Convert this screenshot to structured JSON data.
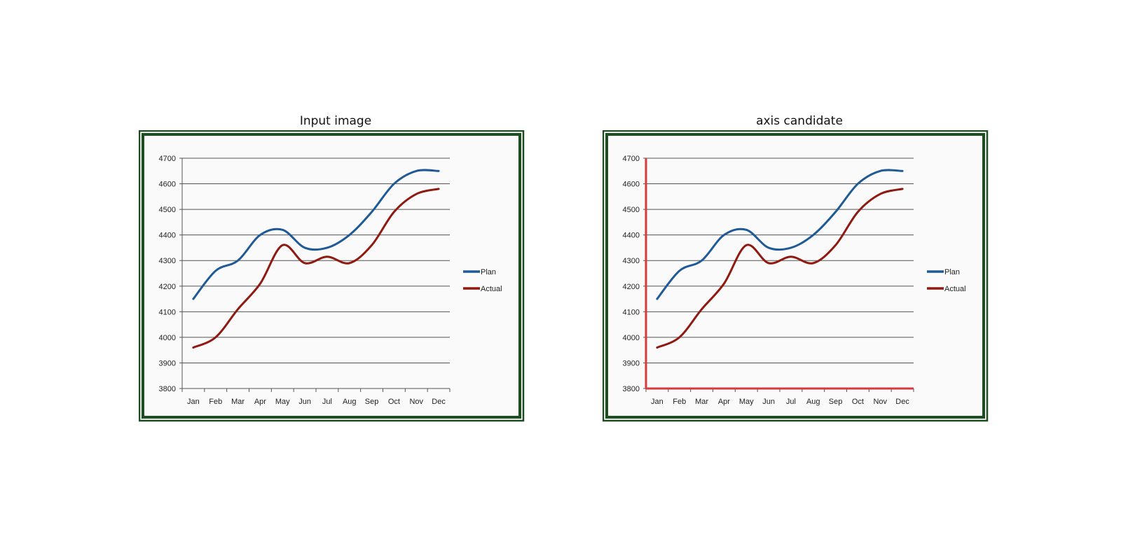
{
  "panels": [
    {
      "title": "Input image",
      "highlight_axes": false
    },
    {
      "title": "axis candidate",
      "highlight_axes": true,
      "highlight_color": "#d63a3a"
    }
  ],
  "colors": {
    "frame": "#1d4d20",
    "plan": "#1f5a96",
    "actual": "#8e1a12",
    "grid": "#555555",
    "plot_bg": "#fafafa"
  },
  "chart_data": {
    "type": "line",
    "categories": [
      "Jan",
      "Feb",
      "Mar",
      "Apr",
      "May",
      "Jun",
      "Jul",
      "Aug",
      "Sep",
      "Oct",
      "Nov",
      "Dec"
    ],
    "series": [
      {
        "name": "Plan",
        "values": [
          4150,
          4260,
          4300,
          4400,
          4420,
          4350,
          4350,
          4400,
          4490,
          4600,
          4650,
          4650
        ]
      },
      {
        "name": "Actual",
        "values": [
          3960,
          4000,
          4110,
          4210,
          4360,
          4290,
          4315,
          4290,
          4360,
          4490,
          4560,
          4580
        ]
      }
    ],
    "ylim": [
      3800,
      4700
    ],
    "yticks": [
      3800,
      3900,
      4000,
      4100,
      4200,
      4300,
      4400,
      4500,
      4600,
      4700
    ],
    "xlabel": "",
    "ylabel": "",
    "grid": true,
    "legend_position": "right"
  }
}
